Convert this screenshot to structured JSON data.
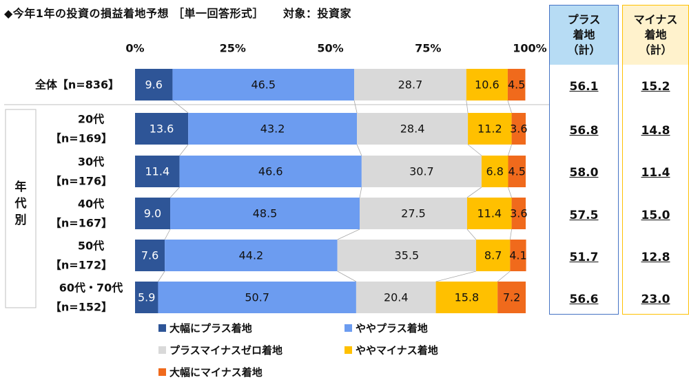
{
  "title": {
    "main": "◆今年1年の投資の損益着地予想",
    "type": "［単一回答形式］",
    "target": "対象：投資家"
  },
  "chart_data": {
    "type": "bar",
    "orientation": "horizontal",
    "stacked": true,
    "xlim": [
      0,
      100
    ],
    "x_ticks": [
      "0%",
      "25%",
      "50%",
      "75%",
      "100%"
    ],
    "group_label": "年代別",
    "categories": [
      {
        "line1": "全体【n=836】",
        "line2": ""
      },
      {
        "line1": "20代",
        "line2": "【n=169】"
      },
      {
        "line1": "30代",
        "line2": "【n=176】"
      },
      {
        "line1": "40代",
        "line2": "【n=167】"
      },
      {
        "line1": "50代",
        "line2": "【n=172】"
      },
      {
        "line1": "60代・70代",
        "line2": "【n=152】"
      }
    ],
    "series": [
      {
        "name": "大幅にプラス着地",
        "color": "#2e5597",
        "label_color": "#ffffff",
        "values": [
          9.6,
          13.6,
          11.4,
          9.0,
          7.6,
          5.9
        ]
      },
      {
        "name": "ややプラス着地",
        "color": "#6c9cf0",
        "label_color": "#111111",
        "values": [
          46.5,
          43.2,
          46.6,
          48.5,
          44.2,
          50.7
        ]
      },
      {
        "name": "プラスマイナスゼロ着地",
        "color": "#d9d9d9",
        "label_color": "#111111",
        "values": [
          28.7,
          28.4,
          30.7,
          27.5,
          35.5,
          20.4
        ]
      },
      {
        "name": "ややマイナス着地",
        "color": "#ffc000",
        "label_color": "#111111",
        "values": [
          10.6,
          11.2,
          6.8,
          11.4,
          8.7,
          15.8
        ]
      },
      {
        "name": "大幅にマイナス着地",
        "color": "#f06a1c",
        "label_color": "#111111",
        "values": [
          4.5,
          3.6,
          4.5,
          3.6,
          4.1,
          7.2
        ]
      }
    ],
    "summary": {
      "plus": {
        "label_line1": "プラス",
        "label_line2": "着地",
        "label_line3": "（計）",
        "color": "#4472c4",
        "values": [
          "56.1",
          "56.8",
          "58.0",
          "57.5",
          "51.7",
          "56.6"
        ]
      },
      "minus": {
        "label_line1": "マイナス",
        "label_line2": "着地",
        "label_line3": "（計）",
        "color": "#ffc000",
        "values": [
          "15.2",
          "14.8",
          "11.4",
          "15.0",
          "12.8",
          "23.0"
        ]
      }
    }
  }
}
